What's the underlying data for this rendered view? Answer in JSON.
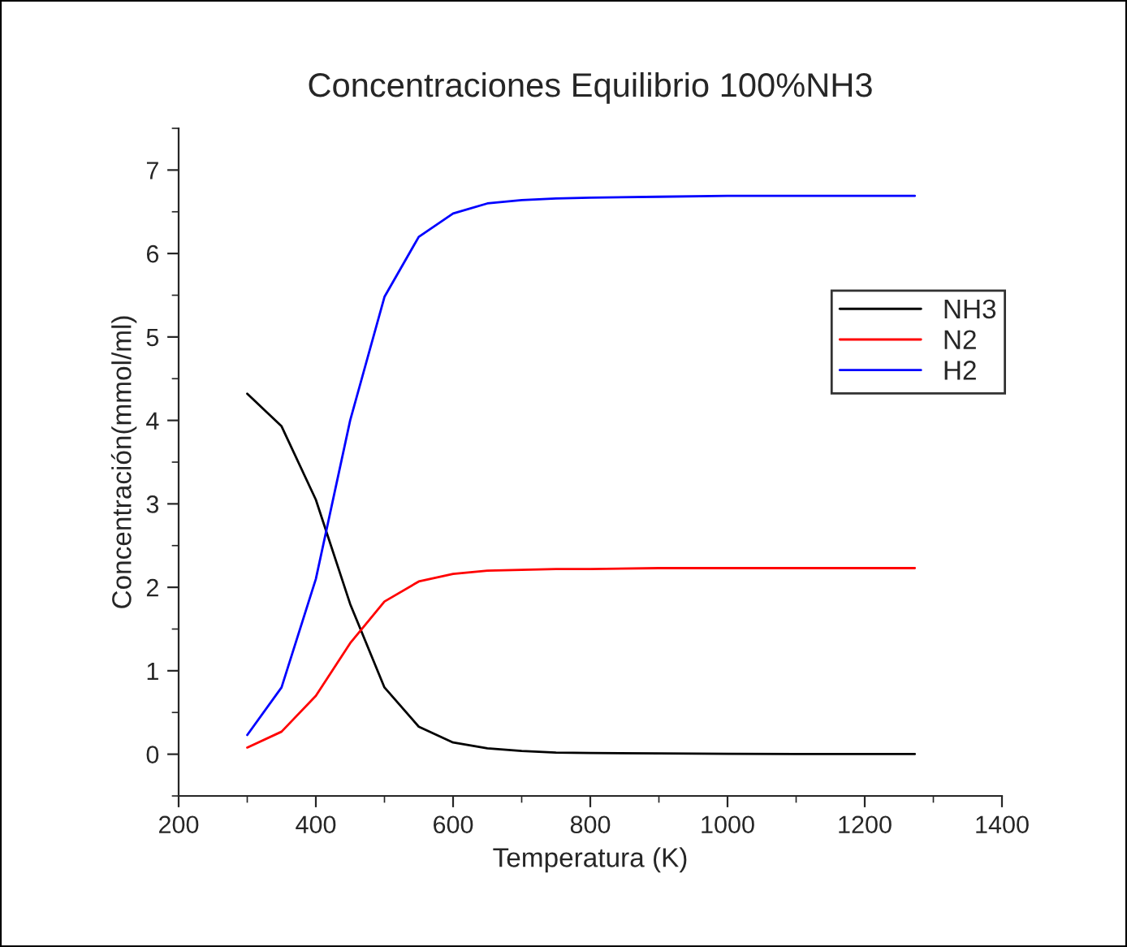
{
  "chart_data": {
    "type": "line",
    "title": "Concentraciones Equilibrio 100%NH3",
    "xlabel": "Temperatura (K)",
    "ylabel": "Concentración(mmol/ml)",
    "x": [
      300,
      350,
      400,
      450,
      500,
      550,
      600,
      650,
      700,
      750,
      800,
      900,
      1000,
      1100,
      1200,
      1273
    ],
    "series": [
      {
        "name": "NH3",
        "color": "#000000",
        "values": [
          4.32,
          3.93,
          3.05,
          1.8,
          0.8,
          0.33,
          0.14,
          0.07,
          0.04,
          0.02,
          0.015,
          0.01,
          0.005,
          0.003,
          0.002,
          0.002
        ]
      },
      {
        "name": "N2",
        "color": "#ff0000",
        "values": [
          0.08,
          0.27,
          0.7,
          1.33,
          1.83,
          2.07,
          2.16,
          2.2,
          2.21,
          2.22,
          2.22,
          2.23,
          2.23,
          2.23,
          2.23,
          2.23
        ]
      },
      {
        "name": "H2",
        "color": "#0000ff",
        "values": [
          0.23,
          0.8,
          2.1,
          4.0,
          5.48,
          6.2,
          6.48,
          6.6,
          6.64,
          6.66,
          6.67,
          6.68,
          6.69,
          6.69,
          6.69,
          6.69
        ]
      }
    ],
    "xlim": [
      200,
      1400
    ],
    "ylim": [
      -0.5,
      7.5
    ],
    "xticks": [
      200,
      400,
      600,
      800,
      1000,
      1200,
      1400
    ],
    "yticks": [
      0,
      1,
      2,
      3,
      4,
      5,
      6,
      7
    ],
    "grid": false,
    "legend": "right",
    "marker": "none",
    "line_style": "solid"
  }
}
